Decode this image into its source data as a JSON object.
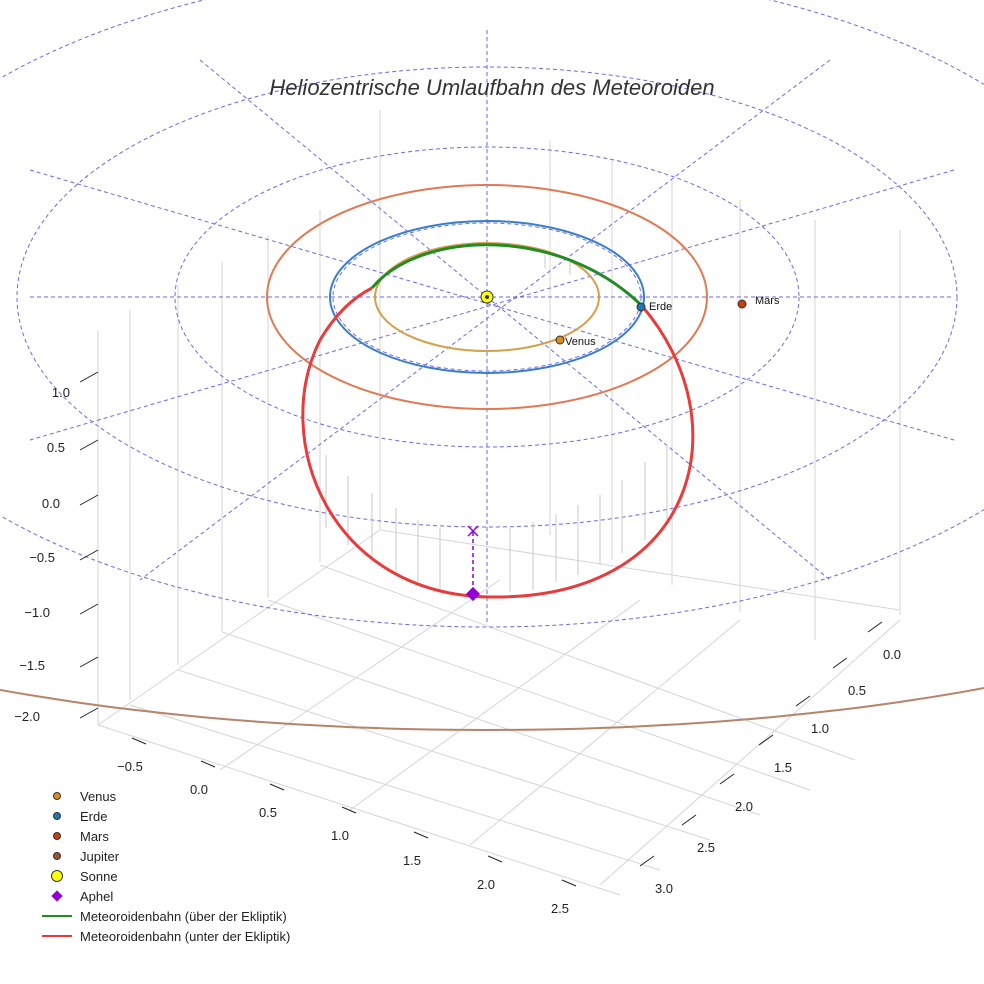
{
  "chart_data": {
    "type": "line",
    "title": "Heliozentrische Umlaufbahn des Meteoroiden",
    "axes": {
      "x_ticks": [
        "−0.5",
        "0.0",
        "0.5",
        "1.0",
        "1.5",
        "2.0",
        "2.5"
      ],
      "y_ticks": [
        "0.0",
        "0.5",
        "1.0",
        "1.5",
        "2.0",
        "2.5",
        "3.0"
      ],
      "z_ticks": [
        "1.0",
        "0.5",
        "0.0",
        "−0.5",
        "−1.0",
        "−1.5",
        "−2.0"
      ],
      "grid": true
    },
    "planets": [
      {
        "name": "Venus",
        "orbit_radius_au": 0.72,
        "color": "#d4a04a",
        "marker_color": "#d98c1a",
        "label": "Venus"
      },
      {
        "name": "Erde",
        "orbit_radius_au": 1.0,
        "color": "#3a7ec9",
        "marker_color": "#1f77b4",
        "label": "Erde"
      },
      {
        "name": "Mars",
        "orbit_radius_au": 1.52,
        "color": "#e07a55",
        "marker_color": "#c7400a",
        "label": "Mars"
      },
      {
        "name": "Jupiter",
        "orbit_radius_au": 5.2,
        "color": "#b5846a",
        "marker_color": "#a0522d"
      }
    ],
    "sun": {
      "name": "Sonne",
      "color": "#ffff00"
    },
    "aphel": {
      "name": "Aphel",
      "color": "#9400d3"
    },
    "series": [
      {
        "name": "Meteoroidenbahn (über der Ekliptik)",
        "color": "#228b22"
      },
      {
        "name": "Meteoroidenbahn (unter der Ekliptik)",
        "color": "#e83c3c"
      }
    ],
    "legend_position": "bottom-left"
  },
  "legend": [
    {
      "label": "Venus",
      "kind": "dot",
      "color": "#d98c1a"
    },
    {
      "label": "Erde",
      "kind": "dot",
      "color": "#1f77b4"
    },
    {
      "label": "Mars",
      "kind": "dot",
      "color": "#c7400a"
    },
    {
      "label": "Jupiter",
      "kind": "dot",
      "color": "#a0522d"
    },
    {
      "label": "Sonne",
      "kind": "sun",
      "color": "#ffff00"
    },
    {
      "label": "Aphel",
      "kind": "diamond",
      "color": "#9400d3"
    },
    {
      "label": "Meteoroidenbahn (über der Ekliptik)",
      "kind": "line",
      "color": "#228b22"
    },
    {
      "label": "Meteoroidenbahn (unter der Ekliptik)",
      "kind": "line",
      "color": "#e83c3c"
    }
  ]
}
